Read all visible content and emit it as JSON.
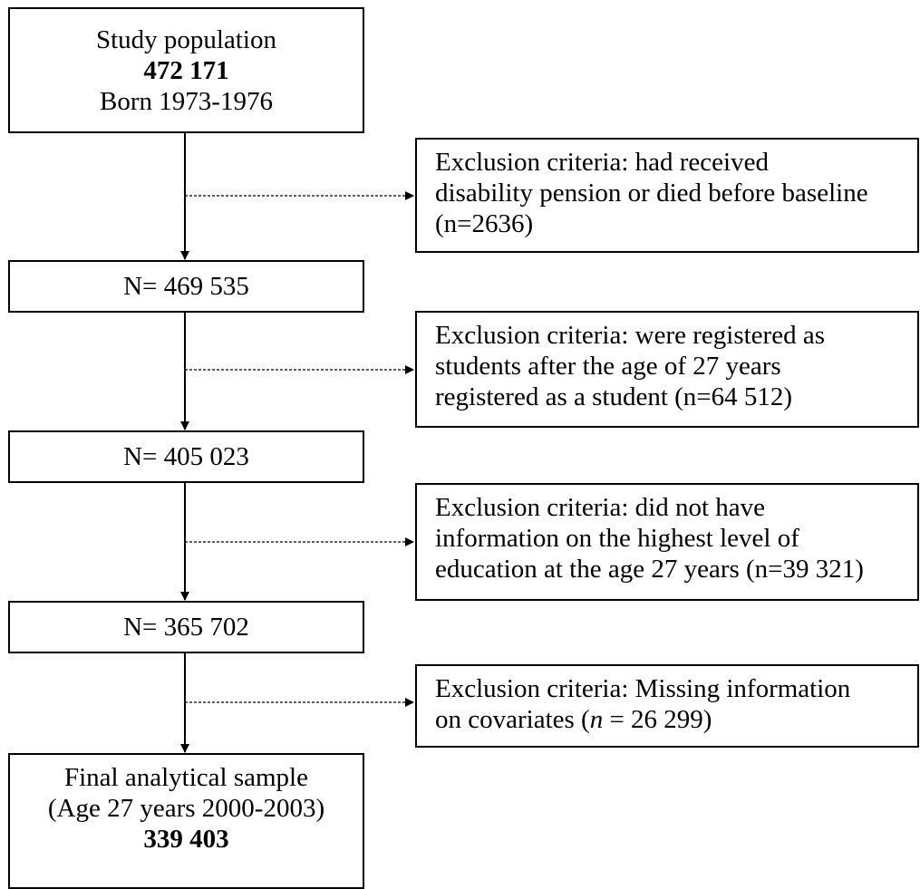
{
  "study_population": {
    "title": "Study population",
    "count": "472 171",
    "born": "Born 1973-1976"
  },
  "exclusion_1": {
    "line1": "Exclusion criteria:  had received",
    "line2": "disability pension or died before baseline",
    "line3": "(n=2636)"
  },
  "step_1": {
    "label": "N= 469 535"
  },
  "exclusion_2": {
    "line1": "Exclusion criteria:  were registered as",
    "line2": "students after the age of 27 years",
    "line3": "registered as a student (n=64 512)"
  },
  "step_2": {
    "label": "N= 405 023"
  },
  "exclusion_3": {
    "line1": "Exclusion criteria:  did not have",
    "line2": "information on the highest level of",
    "line3": "education at the age 27 years (n=39 321)"
  },
  "step_3": {
    "label": "N= 365 702"
  },
  "exclusion_4": {
    "line1": "Exclusion criteria:  Missing information",
    "line2_prefix": "on covariates (",
    "line2_n": "n",
    "line2_suffix": " = 26 299)"
  },
  "final_sample": {
    "title": "Final analytical sample",
    "subtitle": "(Age 27 years 2000-2003)",
    "count": "339 403"
  }
}
